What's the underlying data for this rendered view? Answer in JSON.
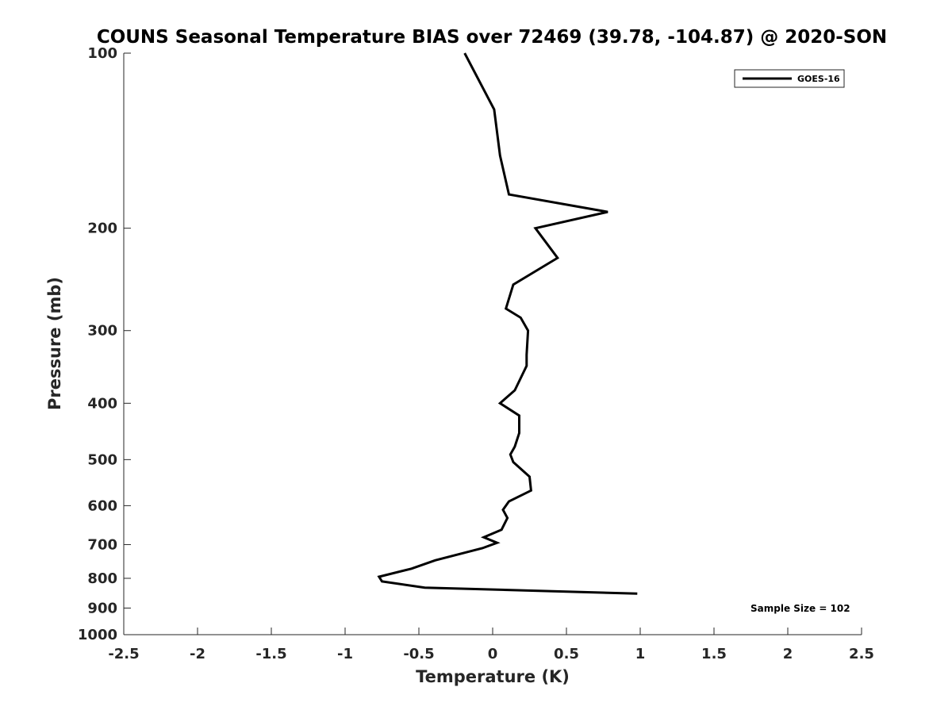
{
  "chart_data": {
    "type": "line",
    "title": "COUNS Seasonal Temperature BIAS over 72469 (39.78, -104.87) @ 2020-SON",
    "xlabel": "Temperature (K)",
    "ylabel": "Pressure (mb)",
    "xlim": [
      -2.5,
      2.5
    ],
    "ylim": [
      100,
      1000
    ],
    "y_scale": "log",
    "y_reversed": true,
    "x_ticks": [
      -2.5,
      -2,
      -1.5,
      -1,
      -0.5,
      0,
      0.5,
      1,
      1.5,
      2,
      2.5
    ],
    "x_tick_labels": [
      "-2.5",
      "-2",
      "-1.5",
      "-1",
      "-0.5",
      "0",
      "0.5",
      "1",
      "1.5",
      "2",
      "2.5"
    ],
    "y_ticks": [
      100,
      200,
      300,
      400,
      500,
      600,
      700,
      800,
      900,
      1000
    ],
    "y_tick_labels": [
      "100",
      "200",
      "300",
      "400",
      "500",
      "600",
      "700",
      "800",
      "900",
      "1000"
    ],
    "grid": false,
    "legend_position": "top-right",
    "series": [
      {
        "name": "GOES-16",
        "color": "#000000",
        "points": [
          {
            "x": -0.19,
            "p": 100
          },
          {
            "x": 0.01,
            "p": 125
          },
          {
            "x": 0.05,
            "p": 150
          },
          {
            "x": 0.11,
            "p": 175
          },
          {
            "x": 0.78,
            "p": 187.5
          },
          {
            "x": 0.29,
            "p": 200
          },
          {
            "x": 0.44,
            "p": 225
          },
          {
            "x": 0.14,
            "p": 250
          },
          {
            "x": 0.09,
            "p": 275
          },
          {
            "x": 0.19,
            "p": 285
          },
          {
            "x": 0.24,
            "p": 300
          },
          {
            "x": 0.23,
            "p": 330
          },
          {
            "x": 0.23,
            "p": 345
          },
          {
            "x": 0.15,
            "p": 380
          },
          {
            "x": 0.05,
            "p": 400
          },
          {
            "x": 0.18,
            "p": 420
          },
          {
            "x": 0.18,
            "p": 450
          },
          {
            "x": 0.15,
            "p": 475
          },
          {
            "x": 0.12,
            "p": 490
          },
          {
            "x": 0.14,
            "p": 505
          },
          {
            "x": 0.25,
            "p": 535
          },
          {
            "x": 0.26,
            "p": 565
          },
          {
            "x": 0.11,
            "p": 590
          },
          {
            "x": 0.07,
            "p": 610
          },
          {
            "x": 0.1,
            "p": 630
          },
          {
            "x": 0.06,
            "p": 660
          },
          {
            "x": -0.06,
            "p": 680
          },
          {
            "x": 0.03,
            "p": 695
          },
          {
            "x": -0.07,
            "p": 710
          },
          {
            "x": -0.39,
            "p": 745
          },
          {
            "x": -0.55,
            "p": 770
          },
          {
            "x": -0.77,
            "p": 795
          },
          {
            "x": -0.75,
            "p": 810
          },
          {
            "x": -0.46,
            "p": 830
          },
          {
            "x": 0.98,
            "p": 850
          }
        ]
      }
    ],
    "legend": [
      "GOES-16"
    ],
    "annotations": [
      "Sample Size = 102"
    ]
  }
}
